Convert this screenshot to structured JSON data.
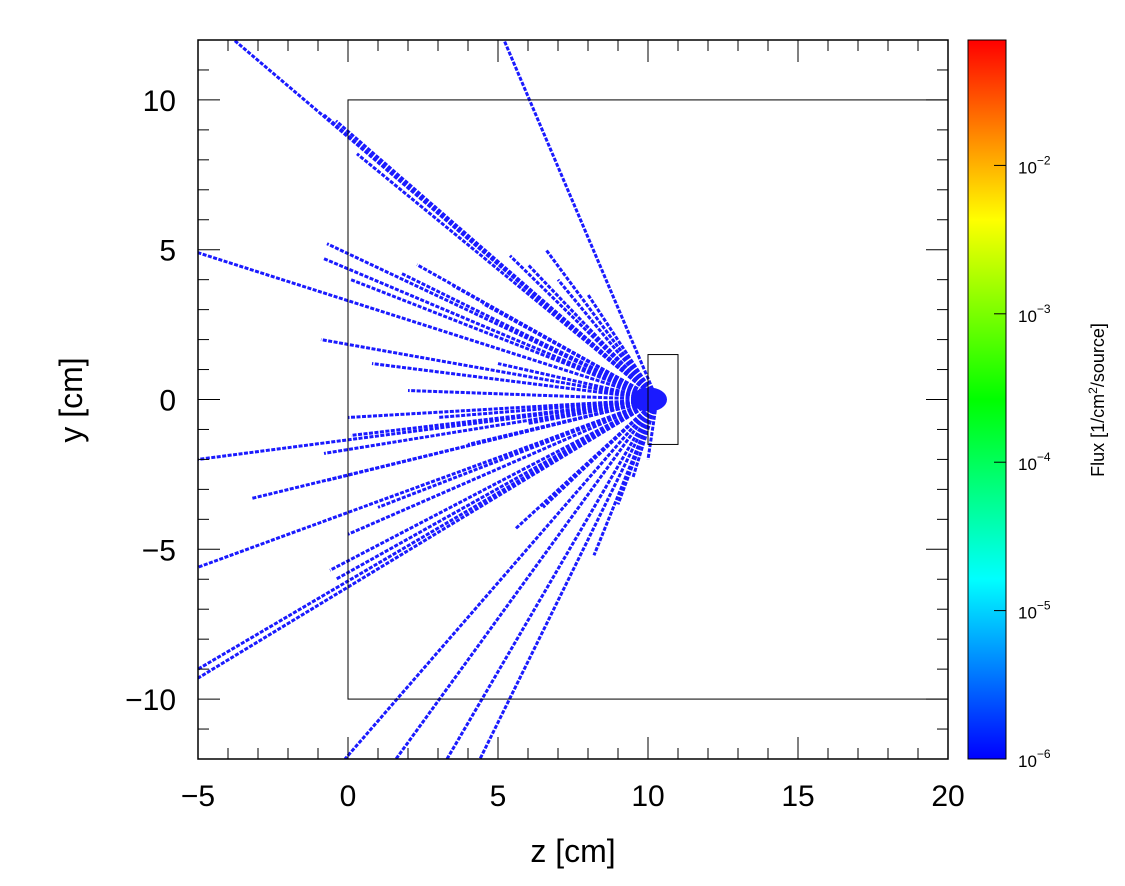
{
  "chart_data": {
    "type": "heatmap",
    "title": "",
    "xlabel": "z [cm]",
    "ylabel": "y [cm]",
    "xlim": [
      -5,
      20
    ],
    "ylim": [
      -12,
      12
    ],
    "x_ticks": [
      {
        "value": -5,
        "label": "−5"
      },
      {
        "value": 0,
        "label": "0"
      },
      {
        "value": 5,
        "label": "5"
      },
      {
        "value": 10,
        "label": "10"
      },
      {
        "value": 15,
        "label": "15"
      },
      {
        "value": 20,
        "label": "20"
      }
    ],
    "y_ticks": [
      {
        "value": -10,
        "label": "−10"
      },
      {
        "value": -5,
        "label": "−5"
      },
      {
        "value": 0,
        "label": "0"
      },
      {
        "value": 5,
        "label": "5"
      },
      {
        "value": 10,
        "label": "10"
      }
    ],
    "colorbar": {
      "title_prefix": "Flux [1/cm",
      "title_sup": "2",
      "title_suffix": "/source]",
      "scale": "log",
      "range": [
        1e-06,
        0.07
      ],
      "ticks": [
        {
          "value": 1e-06,
          "base": "10",
          "exp": "−6"
        },
        {
          "value": 1e-05,
          "base": "10",
          "exp": "−5"
        },
        {
          "value": 0.0001,
          "base": "10",
          "exp": "−4"
        },
        {
          "value": 0.001,
          "base": "10",
          "exp": "−3"
        },
        {
          "value": 0.01,
          "base": "10",
          "exp": "−2"
        }
      ],
      "colors": [
        "#0000ff",
        "#0080ff",
        "#00ffff",
        "#00ff80",
        "#00ff00",
        "#80ff00",
        "#ffff00",
        "#ff8000",
        "#ff0000"
      ]
    },
    "geometry": [
      {
        "name": "outer-box",
        "z": [
          0,
          20
        ],
        "y": [
          -10,
          10
        ]
      },
      {
        "name": "detector-box",
        "z": [
          10,
          11
        ],
        "y": [
          -1.5,
          1.5
        ]
      }
    ],
    "source_point": [
      10.3,
      0
    ],
    "track_color": "#1a1aff",
    "tracks": [
      [
        -3.8,
        12.0
      ],
      [
        -5.0,
        4.9
      ],
      [
        -0.8,
        9.5
      ],
      [
        -0.4,
        9.3
      ],
      [
        0.3,
        8.2
      ],
      [
        -0.7,
        5.2
      ],
      [
        -0.8,
        4.7
      ],
      [
        0.1,
        4.0
      ],
      [
        -0.9,
        2.0
      ],
      [
        0.8,
        1.2
      ],
      [
        2.3,
        4.5
      ],
      [
        3.5,
        3.8
      ],
      [
        4.5,
        3.2
      ],
      [
        5.2,
        12.0
      ],
      [
        5.4,
        4.8
      ],
      [
        6.0,
        4.5
      ],
      [
        7.0,
        4.0
      ],
      [
        8.0,
        3.5
      ],
      [
        -5.0,
        -2.0
      ],
      [
        0.0,
        -0.6
      ],
      [
        0.1,
        -1.2
      ],
      [
        -0.8,
        -1.8
      ],
      [
        -3.2,
        -3.3
      ],
      [
        -0.7,
        -2.7
      ],
      [
        -5.0,
        -5.6
      ],
      [
        -0.6,
        -5.7
      ],
      [
        -5.0,
        -9.3
      ],
      [
        -5.0,
        -9.0
      ],
      [
        -0.4,
        -6.0
      ],
      [
        0.0,
        -4.5
      ],
      [
        1.0,
        -3.6
      ],
      [
        1.6,
        -12.0
      ],
      [
        -0.1,
        -12.0
      ],
      [
        3.3,
        -12.0
      ],
      [
        4.4,
        -12.0
      ],
      [
        5.6,
        -4.3
      ],
      [
        6.5,
        -3.6
      ],
      [
        8.2,
        -5.2
      ],
      [
        9.0,
        -3.5
      ],
      [
        9.5,
        -2.6
      ],
      [
        10.0,
        -2.0
      ],
      [
        4.0,
        -1.5
      ],
      [
        6.0,
        -0.8
      ],
      [
        2.0,
        0.3
      ],
      [
        5.0,
        1.2
      ],
      [
        7.5,
        2.4
      ],
      [
        8.5,
        1.5
      ],
      [
        3.0,
        -0.6
      ],
      [
        1.8,
        4.2
      ],
      [
        6.6,
        5.0
      ]
    ]
  }
}
